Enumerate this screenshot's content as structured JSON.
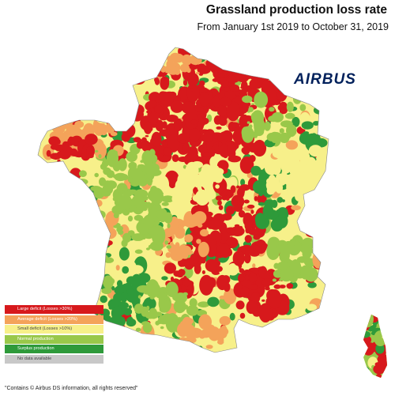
{
  "title": "Grassland production loss rate",
  "subtitle": "From January 1st 2019 to October 31, 2019",
  "logo_text": "AIRBUS",
  "legend": [
    {
      "label": "Large deficit (Losses >30%)",
      "color": "#d7191c"
    },
    {
      "label": "Average deficit (Losses >20%)",
      "color": "#f4a35a"
    },
    {
      "label": "Small deficit (Losses >10%)",
      "color": "#f7f08a"
    },
    {
      "label": "Normal production",
      "color": "#99c84a"
    },
    {
      "label": "Surplus production",
      "color": "#2e9a3a"
    },
    {
      "label": "No data available",
      "color": "#c8c8c8"
    }
  ],
  "footer": "\"Contains © Airbus DS information, all rights reserved\"",
  "colors": {
    "red": "#d7191c",
    "orange": "#f4a35a",
    "yellow": "#f7f08a",
    "lightgreen": "#99c84a",
    "darkgreen": "#2e9a3a",
    "grey": "#c8c8c8",
    "logo": "#00205b"
  }
}
